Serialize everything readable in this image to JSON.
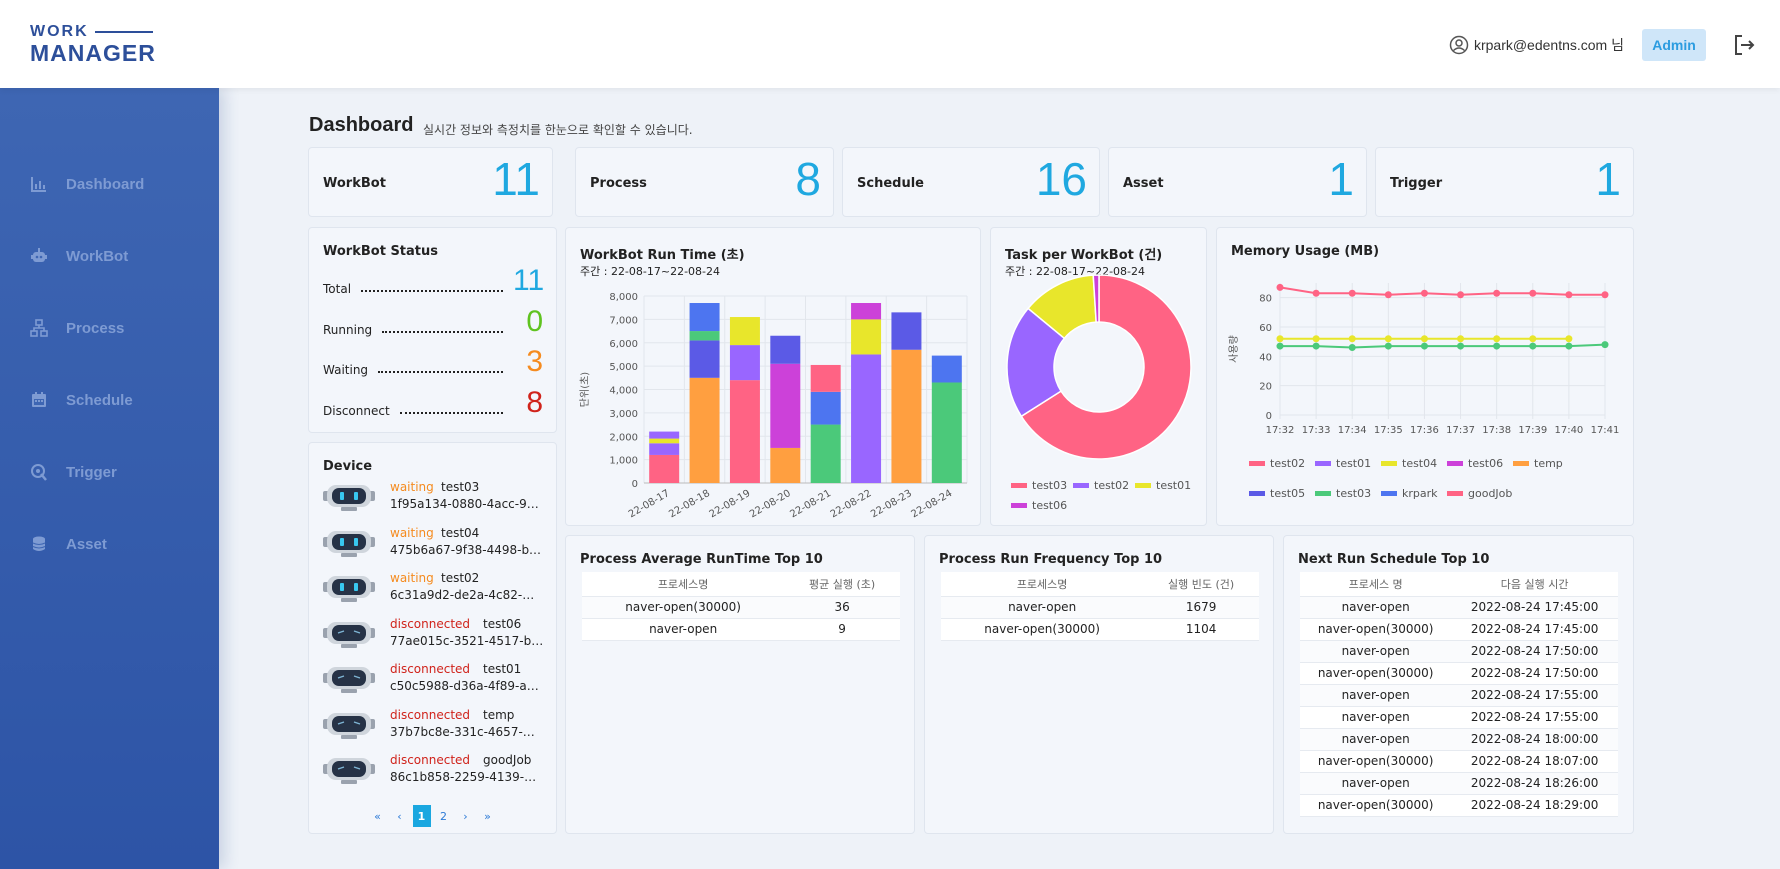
{
  "header": {
    "logo_line1": "WORK",
    "logo_line2": "MANAGER",
    "user_email": "krpark@edentns.com 님",
    "admin_label": "Admin"
  },
  "sidebar": {
    "items": [
      {
        "label": "Dashboard",
        "icon": "chart-icon"
      },
      {
        "label": "WorkBot",
        "icon": "robot-icon"
      },
      {
        "label": "Process",
        "icon": "sitemap-icon"
      },
      {
        "label": "Schedule",
        "icon": "calendar-icon"
      },
      {
        "label": "Trigger",
        "icon": "trigger-icon"
      },
      {
        "label": "Asset",
        "icon": "database-icon"
      }
    ]
  },
  "page": {
    "title": "Dashboard",
    "subtitle": "실시간 정보와 측정치를 한눈으로 확인할 수 있습니다."
  },
  "stats": [
    {
      "label": "WorkBot",
      "value": "11"
    },
    {
      "label": "Process",
      "value": "8"
    },
    {
      "label": "Schedule",
      "value": "16"
    },
    {
      "label": "Asset",
      "value": "1"
    },
    {
      "label": "Trigger",
      "value": "1"
    }
  ],
  "workbot_status": {
    "title": "WorkBot Status",
    "rows": [
      {
        "label": "Total",
        "value": "11",
        "color": "#1fa8e0"
      },
      {
        "label": "Running",
        "value": "0",
        "color": "#5fc31f"
      },
      {
        "label": "Waiting",
        "value": "3",
        "color": "#f58b1f"
      },
      {
        "label": "Disconnect",
        "value": "8",
        "color": "#d0231b"
      }
    ]
  },
  "device": {
    "title": "Device",
    "items": [
      {
        "status": "waiting",
        "name": "test03",
        "id": "1f95a134-0880-4acc-9…"
      },
      {
        "status": "waiting",
        "name": "test04",
        "id": "475b6a67-9f38-4498-b…"
      },
      {
        "status": "waiting",
        "name": "test02",
        "id": "6c31a9d2-de2a-4c82-…"
      },
      {
        "status": "disconnected",
        "name": "test06",
        "id": "77ae015c-3521-4517-b…"
      },
      {
        "status": "disconnected",
        "name": "test01",
        "id": "c50c5988-d36a-4f89-a…"
      },
      {
        "status": "disconnected",
        "name": "temp",
        "id": "37b7bc8e-331c-4657-…"
      },
      {
        "status": "disconnected",
        "name": "goodJob",
        "id": "86c1b858-2259-4139-…"
      }
    ],
    "status_colors": {
      "waiting": "#f58b1f",
      "disconnected": "#d0231b"
    },
    "pager": {
      "first": "«",
      "prev": "‹",
      "pages": [
        "1",
        "2"
      ],
      "current": "1",
      "next": "›",
      "last": "»"
    }
  },
  "runtime_card": {
    "title": "WorkBot Run Time (초)",
    "period": "주간 : 22-08-17~22-08-24"
  },
  "task_card": {
    "title": "Task per WorkBot (건)",
    "period": "주간 : 22-08-17~22-08-24"
  },
  "memory_card": {
    "title": "Memory Usage (MB)"
  },
  "chart_data": [
    {
      "type": "bar",
      "stacked": true,
      "title": "WorkBot Run Time (초)",
      "ylabel": "단위(초)",
      "ylim": [
        0,
        8000
      ],
      "yticks": [
        0,
        1000,
        2000,
        3000,
        4000,
        5000,
        6000,
        7000,
        8000
      ],
      "ytick_labels": [
        "0",
        "1,000",
        "2,000",
        "3,000",
        "4,000",
        "5,000",
        "6,000",
        "7,000",
        "8,000"
      ],
      "categories": [
        "22-08-17",
        "22-08-18",
        "22-08-19",
        "22-08-20",
        "22-08-21",
        "22-08-22",
        "22-08-23",
        "22-08-24"
      ],
      "series": [
        {
          "color": "#ff6384",
          "values": [
            1200,
            0,
            4400,
            0,
            0,
            0,
            0,
            0
          ]
        },
        {
          "color": "#ff9f40",
          "values": [
            0,
            4500,
            0,
            1500,
            0,
            0,
            5700,
            0
          ]
        },
        {
          "color": "#4bc97a",
          "values": [
            0,
            0,
            0,
            0,
            2500,
            0,
            0,
            4300
          ]
        },
        {
          "color": "#cc41d9",
          "values": [
            0,
            0,
            0,
            3600,
            0,
            0,
            0,
            0
          ]
        },
        {
          "color": "#9966ff",
          "values": [
            500,
            0,
            1500,
            0,
            0,
            5500,
            0,
            0
          ]
        },
        {
          "color": "#36a2eb",
          "values": [
            0,
            0,
            0,
            0,
            0,
            0,
            0,
            0
          ]
        },
        {
          "color": "#5b5ae6",
          "values": [
            0,
            1600,
            0,
            1200,
            0,
            0,
            1600,
            0
          ]
        },
        {
          "color": "#4d75f0",
          "values": [
            0,
            0,
            0,
            0,
            1400,
            0,
            0,
            1150
          ]
        },
        {
          "color": "#e8e62b",
          "values": [
            200,
            0,
            1200,
            0,
            0,
            1500,
            0,
            0
          ]
        },
        {
          "color": "#4bc97a",
          "values": [
            0,
            400,
            0,
            0,
            0,
            0,
            0,
            0
          ]
        },
        {
          "color": "#ff6384",
          "values": [
            0,
            0,
            0,
            0,
            1150,
            0,
            0,
            0
          ]
        },
        {
          "color": "#4d75f0",
          "values": [
            0,
            1200,
            0,
            0,
            0,
            0,
            0,
            0
          ]
        },
        {
          "color": "#cc41d9",
          "values": [
            0,
            0,
            0,
            0,
            0,
            700,
            0,
            0
          ]
        },
        {
          "color": "#9966ff",
          "values": [
            300,
            0,
            0,
            0,
            0,
            0,
            0,
            0
          ]
        }
      ]
    },
    {
      "type": "pie",
      "donut": true,
      "title": "Task per WorkBot (건)",
      "labels": [
        "test03",
        "test02",
        "test01",
        "test06"
      ],
      "values": [
        66,
        20,
        13,
        1
      ],
      "colors": [
        "#ff6384",
        "#9966ff",
        "#e8e62b",
        "#cc41d9"
      ],
      "legend": "bottom"
    },
    {
      "type": "line",
      "title": "Memory Usage (MB)",
      "ylabel": "사용량",
      "ylim": [
        0,
        90
      ],
      "yticks": [
        0,
        20,
        40,
        60,
        80
      ],
      "x": [
        "17:32",
        "17:33",
        "17:34",
        "17:35",
        "17:36",
        "17:37",
        "17:38",
        "17:39",
        "17:40",
        "17:41"
      ],
      "series": [
        {
          "name": "goodJob",
          "color": "#ff6384",
          "values": [
            87,
            83,
            83,
            82,
            83,
            82,
            83,
            83,
            82,
            82
          ]
        },
        {
          "name": "test04",
          "color": "#e8e62b",
          "values": [
            52,
            52,
            52,
            52,
            52,
            52,
            52,
            52,
            52,
            null
          ]
        },
        {
          "name": "test03",
          "color": "#4bc97a",
          "values": [
            47,
            47,
            46,
            47,
            47,
            47,
            47,
            47,
            47,
            48
          ]
        }
      ],
      "legend_entries": [
        {
          "name": "test02",
          "color": "#ff6384"
        },
        {
          "name": "test01",
          "color": "#9966ff"
        },
        {
          "name": "test04",
          "color": "#e8e62b"
        },
        {
          "name": "test06",
          "color": "#cc41d9"
        },
        {
          "name": "temp",
          "color": "#ff9f40"
        },
        {
          "name": "test05",
          "color": "#5b5ae6"
        },
        {
          "name": "test03",
          "color": "#4bc97a"
        },
        {
          "name": "krpark",
          "color": "#4d75f0"
        },
        {
          "name": "goodJob",
          "color": "#ff6384"
        }
      ],
      "legend": "bottom",
      "grid": true
    }
  ],
  "avg_runtime": {
    "title": "Process Average RunTime Top 10",
    "headers": [
      "프로세스명",
      "평균 실행 (초)"
    ],
    "rows": [
      [
        "naver-open(30000)",
        "36"
      ],
      [
        "naver-open",
        "9"
      ]
    ]
  },
  "run_freq": {
    "title": "Process Run Frequency Top 10",
    "headers": [
      "프로세스명",
      "실행 빈도 (건)"
    ],
    "rows": [
      [
        "naver-open",
        "1679"
      ],
      [
        "naver-open(30000)",
        "1104"
      ]
    ]
  },
  "next_schedule": {
    "title": "Next Run Schedule Top 10",
    "headers": [
      "프로세스 명",
      "다음 실행 시간"
    ],
    "rows": [
      [
        "naver-open",
        "2022-08-24 17:45:00"
      ],
      [
        "naver-open(30000)",
        "2022-08-24 17:45:00"
      ],
      [
        "naver-open",
        "2022-08-24 17:50:00"
      ],
      [
        "naver-open(30000)",
        "2022-08-24 17:50:00"
      ],
      [
        "naver-open",
        "2022-08-24 17:55:00"
      ],
      [
        "naver-open",
        "2022-08-24 17:55:00"
      ],
      [
        "naver-open",
        "2022-08-24 18:00:00"
      ],
      [
        "naver-open(30000)",
        "2022-08-24 18:07:00"
      ],
      [
        "naver-open",
        "2022-08-24 18:26:00"
      ],
      [
        "naver-open(30000)",
        "2022-08-24 18:29:00"
      ]
    ]
  }
}
